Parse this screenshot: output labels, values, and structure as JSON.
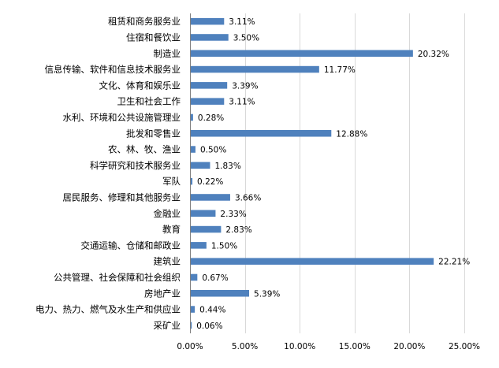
{
  "chart_data": {
    "type": "bar",
    "orientation": "horizontal",
    "categories": [
      "租赁和商务服务业",
      "住宿和餐饮业",
      "制造业",
      "信息传输、软件和信息技术服务业",
      "文化、体育和娱乐业",
      "卫生和社会工作",
      "水利、环境和公共设施管理业",
      "批发和零售业",
      "农、林、牧、渔业",
      "科学研究和技术服务业",
      "军队",
      "居民服务、修理和其他服务业",
      "金融业",
      "教育",
      "交通运输、仓储和邮政业",
      "建筑业",
      "公共管理、社会保障和社会组织",
      "房地产业",
      "电力、热力、燃气及水生产和供应业",
      "采矿业"
    ],
    "values": [
      3.11,
      3.5,
      20.32,
      11.77,
      3.39,
      3.11,
      0.28,
      12.88,
      0.5,
      1.83,
      0.22,
      3.66,
      2.33,
      2.83,
      1.5,
      22.21,
      0.67,
      5.39,
      0.44,
      0.06
    ],
    "value_labels": [
      "3.11%",
      "3.50%",
      "20.32%",
      "11.77%",
      "3.39%",
      "3.11%",
      "0.28%",
      "12.88%",
      "0.50%",
      "1.83%",
      "0.22%",
      "3.66%",
      "2.33%",
      "2.83%",
      "1.50%",
      "22.21%",
      "0.67%",
      "5.39%",
      "0.44%",
      "0.06%"
    ],
    "xlim": [
      0,
      25
    ],
    "x_ticks": [
      0,
      5,
      10,
      15,
      20,
      25
    ],
    "x_tick_labels": [
      "0.00%",
      "5.00%",
      "10.00%",
      "15.00%",
      "20.00%",
      "25.00%"
    ],
    "grid": "vertical",
    "legend": "none",
    "bar_color": "#4F81BD",
    "grid_color": "#D9D9D9",
    "title": "",
    "xlabel": "",
    "ylabel": ""
  }
}
